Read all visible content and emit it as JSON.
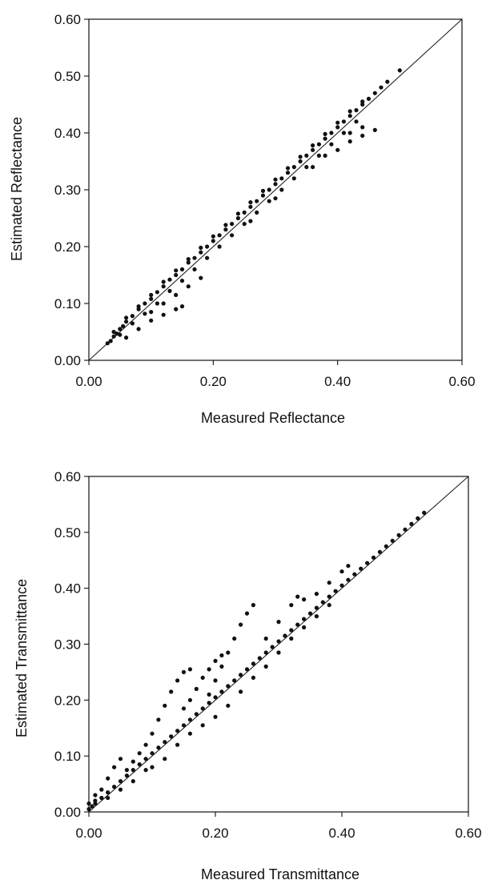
{
  "chart_data": [
    {
      "type": "scatter",
      "title": "",
      "xlabel": "Measured Reflectance",
      "ylabel": "Estimated Reflectance",
      "xlim": [
        0,
        0.6
      ],
      "ylim": [
        0,
        0.6
      ],
      "x_ticks": [
        "0.00",
        "0.20",
        "0.40",
        "0.60"
      ],
      "y_ticks": [
        "0.00",
        "0.10",
        "0.20",
        "0.30",
        "0.40",
        "0.50",
        "0.60"
      ],
      "reference_line": {
        "type": "1:1",
        "from": [
          0,
          0
        ],
        "to": [
          0.6,
          0.6
        ]
      },
      "grid": false,
      "marker_color": "#111111",
      "series": [
        {
          "points": [
            [
              0.03,
              0.03
            ],
            [
              0.035,
              0.034
            ],
            [
              0.04,
              0.042
            ],
            [
              0.045,
              0.047
            ],
            [
              0.05,
              0.055
            ],
            [
              0.055,
              0.06
            ],
            [
              0.06,
              0.068
            ],
            [
              0.07,
              0.078
            ],
            [
              0.08,
              0.09
            ],
            [
              0.09,
              0.1
            ],
            [
              0.1,
              0.108
            ],
            [
              0.11,
              0.12
            ],
            [
              0.12,
              0.13
            ],
            [
              0.13,
              0.142
            ],
            [
              0.14,
              0.15
            ],
            [
              0.15,
              0.16
            ],
            [
              0.16,
              0.172
            ],
            [
              0.17,
              0.18
            ],
            [
              0.18,
              0.19
            ],
            [
              0.19,
              0.2
            ],
            [
              0.2,
              0.21
            ],
            [
              0.21,
              0.22
            ],
            [
              0.22,
              0.23
            ],
            [
              0.23,
              0.24
            ],
            [
              0.24,
              0.25
            ],
            [
              0.25,
              0.26
            ],
            [
              0.26,
              0.27
            ],
            [
              0.27,
              0.28
            ],
            [
              0.28,
              0.29
            ],
            [
              0.29,
              0.3
            ],
            [
              0.3,
              0.31
            ],
            [
              0.31,
              0.32
            ],
            [
              0.32,
              0.33
            ],
            [
              0.33,
              0.34
            ],
            [
              0.34,
              0.35
            ],
            [
              0.35,
              0.36
            ],
            [
              0.36,
              0.37
            ],
            [
              0.37,
              0.38
            ],
            [
              0.38,
              0.39
            ],
            [
              0.39,
              0.4
            ],
            [
              0.4,
              0.41
            ],
            [
              0.41,
              0.42
            ],
            [
              0.42,
              0.43
            ],
            [
              0.43,
              0.44
            ],
            [
              0.44,
              0.45
            ],
            [
              0.45,
              0.46
            ],
            [
              0.46,
              0.47
            ],
            [
              0.47,
              0.48
            ],
            [
              0.48,
              0.49
            ],
            [
              0.5,
              0.51
            ],
            [
              0.05,
              0.045
            ],
            [
              0.07,
              0.065
            ],
            [
              0.09,
              0.082
            ],
            [
              0.11,
              0.1
            ],
            [
              0.13,
              0.122
            ],
            [
              0.15,
              0.14
            ],
            [
              0.17,
              0.16
            ],
            [
              0.19,
              0.18
            ],
            [
              0.21,
              0.2
            ],
            [
              0.23,
              0.22
            ],
            [
              0.25,
              0.24
            ],
            [
              0.27,
              0.26
            ],
            [
              0.29,
              0.28
            ],
            [
              0.31,
              0.3
            ],
            [
              0.33,
              0.32
            ],
            [
              0.35,
              0.34
            ],
            [
              0.37,
              0.36
            ],
            [
              0.39,
              0.38
            ],
            [
              0.41,
              0.4
            ],
            [
              0.43,
              0.42
            ],
            [
              0.04,
              0.05
            ],
            [
              0.06,
              0.075
            ],
            [
              0.08,
              0.095
            ],
            [
              0.1,
              0.115
            ],
            [
              0.12,
              0.138
            ],
            [
              0.14,
              0.158
            ],
            [
              0.16,
              0.178
            ],
            [
              0.18,
              0.198
            ],
            [
              0.2,
              0.218
            ],
            [
              0.22,
              0.238
            ],
            [
              0.24,
              0.258
            ],
            [
              0.26,
              0.278
            ],
            [
              0.28,
              0.298
            ],
            [
              0.3,
              0.318
            ],
            [
              0.32,
              0.338
            ],
            [
              0.34,
              0.358
            ],
            [
              0.36,
              0.378
            ],
            [
              0.38,
              0.398
            ],
            [
              0.4,
              0.418
            ],
            [
              0.42,
              0.438
            ],
            [
              0.44,
              0.455
            ],
            [
              0.06,
              0.04
            ],
            [
              0.08,
              0.055
            ],
            [
              0.1,
              0.07
            ],
            [
              0.12,
              0.08
            ],
            [
              0.14,
              0.09
            ],
            [
              0.15,
              0.095
            ],
            [
              0.1,
              0.085
            ],
            [
              0.12,
              0.1
            ],
            [
              0.14,
              0.115
            ],
            [
              0.16,
              0.13
            ],
            [
              0.18,
              0.145
            ],
            [
              0.4,
              0.37
            ],
            [
              0.42,
              0.385
            ],
            [
              0.44,
              0.395
            ],
            [
              0.46,
              0.405
            ],
            [
              0.42,
              0.4
            ],
            [
              0.44,
              0.41
            ],
            [
              0.38,
              0.36
            ],
            [
              0.36,
              0.34
            ],
            [
              0.3,
              0.285
            ],
            [
              0.26,
              0.245
            ]
          ]
        }
      ]
    },
    {
      "type": "scatter",
      "title": "",
      "xlabel": "Measured Transmittance",
      "ylabel": "Estimated Transmittance",
      "xlim": [
        0,
        0.6
      ],
      "ylim": [
        0,
        0.6
      ],
      "x_ticks": [
        "0.00",
        "0.20",
        "0.40",
        "0.60"
      ],
      "y_ticks": [
        "0.00",
        "0.10",
        "0.20",
        "0.30",
        "0.40",
        "0.50",
        "0.60"
      ],
      "reference_line": {
        "type": "1:1",
        "from": [
          0,
          0
        ],
        "to": [
          0.6,
          0.6
        ]
      },
      "grid": false,
      "marker_color": "#111111",
      "series": [
        {
          "points": [
            [
              0.0,
              0.005
            ],
            [
              0.005,
              0.01
            ],
            [
              0.01,
              0.015
            ],
            [
              0.02,
              0.025
            ],
            [
              0.03,
              0.035
            ],
            [
              0.04,
              0.045
            ],
            [
              0.05,
              0.055
            ],
            [
              0.06,
              0.065
            ],
            [
              0.07,
              0.075
            ],
            [
              0.08,
              0.085
            ],
            [
              0.09,
              0.095
            ],
            [
              0.1,
              0.105
            ],
            [
              0.11,
              0.115
            ],
            [
              0.12,
              0.125
            ],
            [
              0.13,
              0.135
            ],
            [
              0.14,
              0.145
            ],
            [
              0.15,
              0.155
            ],
            [
              0.16,
              0.165
            ],
            [
              0.17,
              0.175
            ],
            [
              0.18,
              0.185
            ],
            [
              0.19,
              0.195
            ],
            [
              0.2,
              0.205
            ],
            [
              0.21,
              0.215
            ],
            [
              0.22,
              0.225
            ],
            [
              0.23,
              0.235
            ],
            [
              0.24,
              0.245
            ],
            [
              0.25,
              0.255
            ],
            [
              0.26,
              0.265
            ],
            [
              0.27,
              0.275
            ],
            [
              0.28,
              0.285
            ],
            [
              0.29,
              0.295
            ],
            [
              0.3,
              0.305
            ],
            [
              0.31,
              0.315
            ],
            [
              0.32,
              0.325
            ],
            [
              0.33,
              0.335
            ],
            [
              0.34,
              0.345
            ],
            [
              0.35,
              0.355
            ],
            [
              0.36,
              0.365
            ],
            [
              0.37,
              0.375
            ],
            [
              0.38,
              0.385
            ],
            [
              0.39,
              0.395
            ],
            [
              0.4,
              0.405
            ],
            [
              0.41,
              0.415
            ],
            [
              0.42,
              0.425
            ],
            [
              0.43,
              0.435
            ],
            [
              0.44,
              0.445
            ],
            [
              0.45,
              0.455
            ],
            [
              0.46,
              0.465
            ],
            [
              0.47,
              0.475
            ],
            [
              0.48,
              0.485
            ],
            [
              0.49,
              0.495
            ],
            [
              0.5,
              0.505
            ],
            [
              0.51,
              0.515
            ],
            [
              0.52,
              0.525
            ],
            [
              0.53,
              0.535
            ],
            [
              0.01,
              0.02
            ],
            [
              0.02,
              0.04
            ],
            [
              0.03,
              0.06
            ],
            [
              0.04,
              0.08
            ],
            [
              0.05,
              0.095
            ],
            [
              0.06,
              0.075
            ],
            [
              0.07,
              0.09
            ],
            [
              0.08,
              0.105
            ],
            [
              0.09,
              0.12
            ],
            [
              0.1,
              0.14
            ],
            [
              0.11,
              0.165
            ],
            [
              0.12,
              0.19
            ],
            [
              0.13,
              0.215
            ],
            [
              0.14,
              0.235
            ],
            [
              0.15,
              0.25
            ],
            [
              0.16,
              0.255
            ],
            [
              0.15,
              0.185
            ],
            [
              0.16,
              0.2
            ],
            [
              0.17,
              0.22
            ],
            [
              0.18,
              0.24
            ],
            [
              0.19,
              0.255
            ],
            [
              0.2,
              0.27
            ],
            [
              0.21,
              0.28
            ],
            [
              0.19,
              0.21
            ],
            [
              0.2,
              0.235
            ],
            [
              0.21,
              0.26
            ],
            [
              0.22,
              0.285
            ],
            [
              0.23,
              0.31
            ],
            [
              0.24,
              0.335
            ],
            [
              0.25,
              0.355
            ],
            [
              0.26,
              0.37
            ],
            [
              0.1,
              0.08
            ],
            [
              0.12,
              0.095
            ],
            [
              0.14,
              0.12
            ],
            [
              0.16,
              0.14
            ],
            [
              0.18,
              0.155
            ],
            [
              0.2,
              0.17
            ],
            [
              0.22,
              0.19
            ],
            [
              0.24,
              0.215
            ],
            [
              0.26,
              0.24
            ],
            [
              0.28,
              0.26
            ],
            [
              0.3,
              0.285
            ],
            [
              0.32,
              0.31
            ],
            [
              0.34,
              0.33
            ],
            [
              0.36,
              0.35
            ],
            [
              0.38,
              0.37
            ],
            [
              0.28,
              0.31
            ],
            [
              0.3,
              0.34
            ],
            [
              0.32,
              0.37
            ],
            [
              0.33,
              0.385
            ],
            [
              0.34,
              0.38
            ],
            [
              0.36,
              0.39
            ],
            [
              0.38,
              0.41
            ],
            [
              0.4,
              0.43
            ],
            [
              0.41,
              0.44
            ],
            [
              0.05,
              0.04
            ],
            [
              0.07,
              0.055
            ],
            [
              0.09,
              0.075
            ],
            [
              0.03,
              0.025
            ],
            [
              0.0,
              0.015
            ],
            [
              0.01,
              0.03
            ]
          ]
        }
      ]
    }
  ]
}
